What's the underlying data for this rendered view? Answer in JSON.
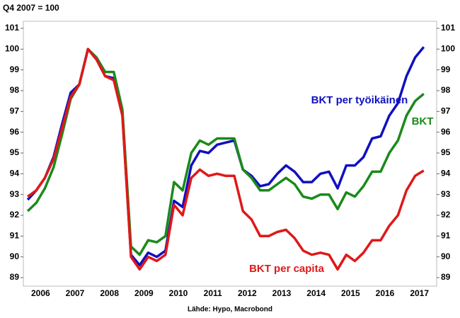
{
  "chart_data": {
    "type": "line",
    "title": "Q4 2007 = 100",
    "source": "Lähde: Hypo, Macrobond",
    "x": [
      2006.125,
      2006.375,
      2006.625,
      2006.875,
      2007.125,
      2007.375,
      2007.625,
      2007.875,
      2008.125,
      2008.375,
      2008.625,
      2008.875,
      2009.125,
      2009.375,
      2009.625,
      2009.875,
      2010.125,
      2010.375,
      2010.625,
      2010.875,
      2011.125,
      2011.375,
      2011.625,
      2011.875,
      2012.125,
      2012.375,
      2012.625,
      2012.875,
      2013.125,
      2013.375,
      2013.625,
      2013.875,
      2014.125,
      2014.375,
      2014.625,
      2014.875,
      2015.125,
      2015.375,
      2015.625,
      2015.875,
      2016.125,
      2016.375,
      2016.625,
      2016.875,
      2017.125,
      2017.375,
      2017.625
    ],
    "xlim": [
      2006,
      2018
    ],
    "xticks": [
      {
        "value": 2006.5,
        "label": "2006"
      },
      {
        "value": 2007.5,
        "label": "2007"
      },
      {
        "value": 2008.5,
        "label": "2008"
      },
      {
        "value": 2009.5,
        "label": "2009"
      },
      {
        "value": 2010.5,
        "label": "2010"
      },
      {
        "value": 2011.5,
        "label": "2011"
      },
      {
        "value": 2012.5,
        "label": "2012"
      },
      {
        "value": 2013.5,
        "label": "2013"
      },
      {
        "value": 2014.5,
        "label": "2014"
      },
      {
        "value": 2015.5,
        "label": "2015"
      },
      {
        "value": 2016.5,
        "label": "2016"
      },
      {
        "value": 2017.5,
        "label": "2017"
      }
    ],
    "ylim": [
      89,
      101
    ],
    "yticks": [
      89,
      90,
      91,
      92,
      93,
      94,
      95,
      96,
      97,
      98,
      99,
      100,
      101
    ],
    "y2lim": [
      89,
      101
    ],
    "y2ticks": [
      89,
      90,
      91,
      92,
      93,
      94,
      95,
      96,
      97,
      98,
      99,
      100,
      101
    ],
    "series": [
      {
        "name": "BKT per työikäinen",
        "color": "#1010c0",
        "values": [
          92.75,
          93.2,
          93.8,
          94.8,
          96.4,
          97.9,
          98.3,
          100.0,
          99.5,
          98.7,
          98.6,
          96.9,
          90.1,
          89.6,
          90.2,
          90.0,
          90.3,
          92.7,
          92.4,
          94.4,
          95.1,
          95.0,
          95.4,
          95.5,
          95.6,
          94.2,
          93.9,
          93.4,
          93.5,
          94.0,
          94.4,
          94.1,
          93.6,
          93.6,
          94.0,
          94.1,
          93.3,
          94.4,
          94.4,
          94.8,
          95.7,
          95.8,
          96.8,
          97.4,
          98.7,
          99.6,
          100.1
        ]
      },
      {
        "name": "BKT",
        "color": "#1a8a1a",
        "values": [
          92.2,
          92.6,
          93.3,
          94.3,
          95.9,
          97.6,
          98.3,
          100.0,
          99.6,
          98.9,
          98.9,
          97.1,
          90.5,
          90.1,
          90.8,
          90.7,
          91.0,
          93.6,
          93.2,
          95.0,
          95.6,
          95.4,
          95.7,
          95.7,
          95.7,
          94.2,
          93.8,
          93.2,
          93.2,
          93.5,
          93.8,
          93.5,
          92.9,
          92.8,
          93.0,
          93.0,
          92.3,
          93.1,
          92.9,
          93.4,
          94.1,
          94.1,
          95.0,
          95.6,
          96.8,
          97.5,
          97.85
        ]
      },
      {
        "name": "BKT per capita",
        "color": "#e01818",
        "values": [
          92.9,
          93.2,
          93.8,
          94.7,
          96.2,
          97.7,
          98.3,
          100.0,
          99.5,
          98.7,
          98.5,
          96.8,
          90.0,
          89.4,
          90.0,
          89.8,
          90.1,
          92.5,
          92.0,
          93.8,
          94.2,
          93.9,
          94.0,
          93.9,
          93.9,
          92.2,
          91.8,
          91.0,
          91.0,
          91.2,
          91.3,
          90.9,
          90.3,
          90.1,
          90.2,
          90.1,
          89.4,
          90.1,
          89.8,
          90.2,
          90.8,
          90.8,
          91.5,
          92.0,
          93.2,
          93.9,
          94.15
        ]
      }
    ]
  }
}
